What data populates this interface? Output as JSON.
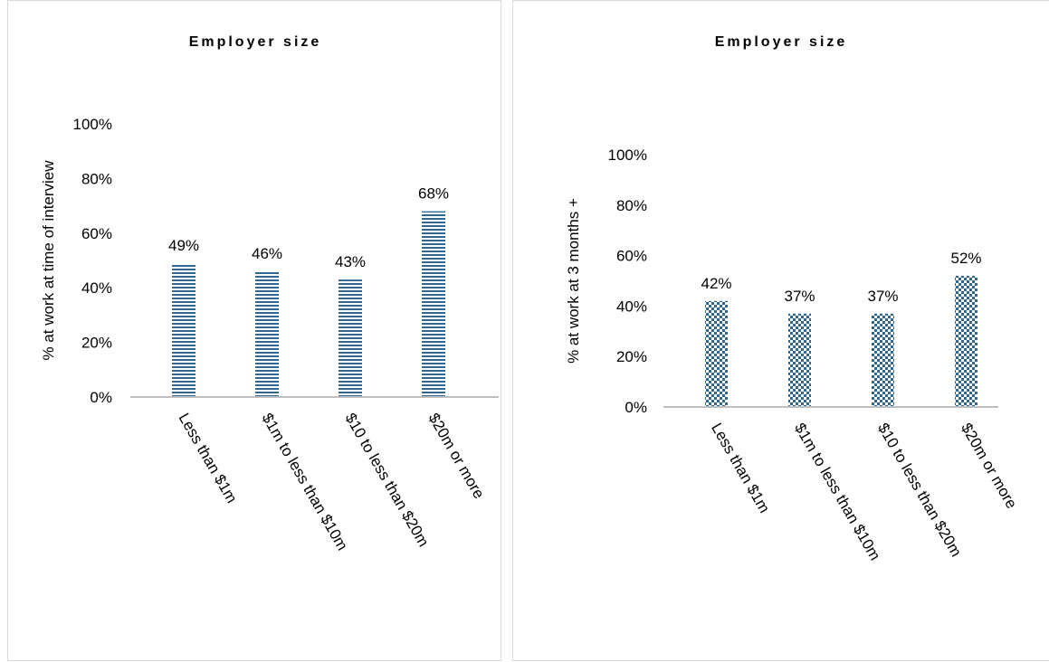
{
  "chart_data": [
    {
      "type": "bar",
      "title": "Employer size",
      "xlabel": "",
      "ylabel": "% at work at time of interview",
      "categories": [
        "Less than $1m",
        "$1m to less than $10m",
        "$10 to less than $20m",
        "$20m or more"
      ],
      "values": [
        49,
        46,
        43,
        68
      ],
      "data_labels": [
        "49%",
        "46%",
        "43%",
        "68%"
      ],
      "yticks": [
        "0%",
        "20%",
        "40%",
        "60%",
        "80%",
        "100%"
      ],
      "ylim": [
        0,
        100
      ],
      "pattern": "horizontal-stripes",
      "bar_color": "#2e6690",
      "axis_color": "#bfbfbf"
    },
    {
      "type": "bar",
      "title": "Employer size",
      "xlabel": "",
      "ylabel": "% at work at 3 months +",
      "categories": [
        "Less than $1m",
        "$1m to less than $10m",
        "$10 to less than $20m",
        "$20m or more"
      ],
      "values": [
        42,
        37,
        37,
        52
      ],
      "data_labels": [
        "42%",
        "37%",
        "37%",
        "52%"
      ],
      "yticks": [
        "0%",
        "20%",
        "40%",
        "60%",
        "80%",
        "100%"
      ],
      "ylim": [
        0,
        100
      ],
      "pattern": "checkerboard",
      "bar_color": "#2e6690",
      "axis_color": "#bfbfbf"
    }
  ]
}
